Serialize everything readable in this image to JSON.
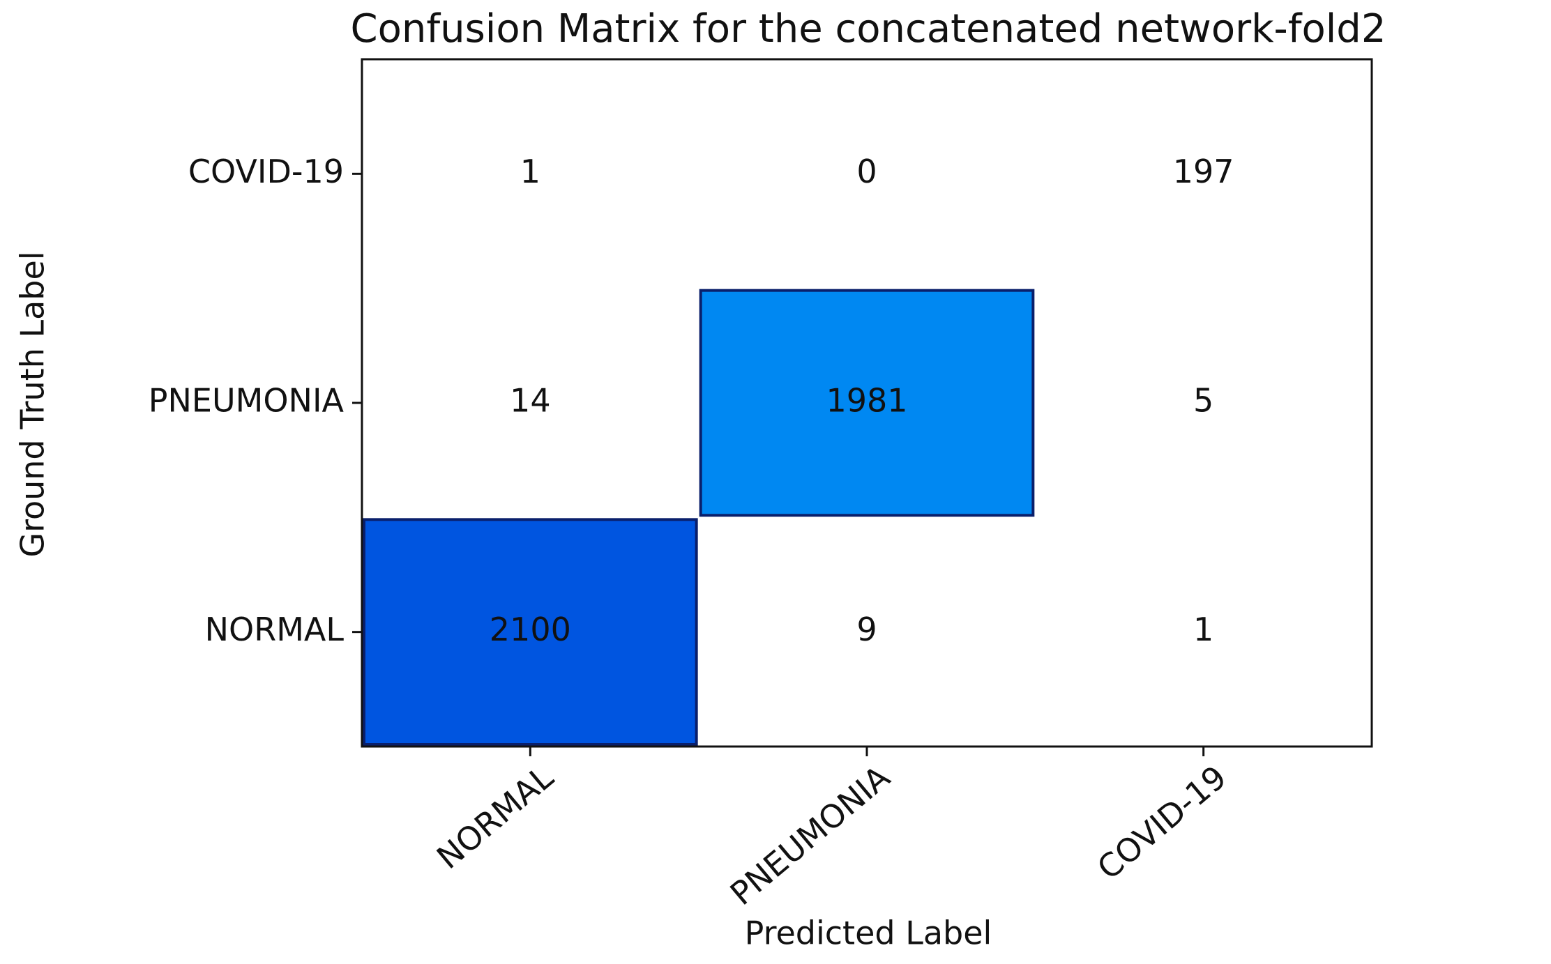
{
  "chart_data": {
    "type": "heatmap",
    "title": "Confusion Matrix for the concatenated network-fold2",
    "xlabel": "Predicted Label",
    "ylabel": "Ground Truth Label",
    "x_categories": [
      "NORMAL",
      "PNEUMONIA",
      "COVID-19"
    ],
    "y_categories": [
      "NORMAL",
      "PNEUMONIA",
      "COVID-19"
    ],
    "values": [
      [
        2100,
        9,
        1
      ],
      [
        14,
        1981,
        5
      ],
      [
        1,
        0,
        197
      ]
    ],
    "cell_colors": [
      [
        "#0055e0",
        "#ffffff",
        "#ffffff"
      ],
      [
        "#ffffff",
        "#0088f2",
        "#ffffff"
      ],
      [
        "#ffffff",
        "#ffffff",
        "#ffffff"
      ]
    ]
  }
}
